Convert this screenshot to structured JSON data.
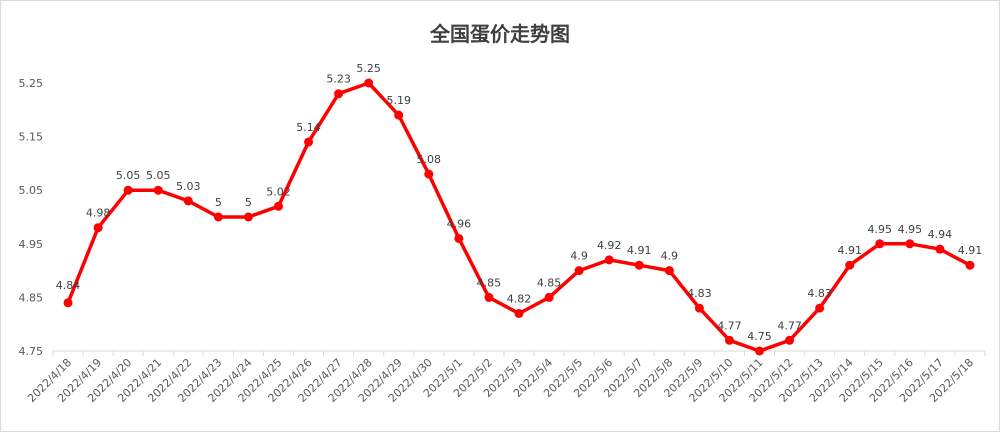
{
  "chart_data": {
    "type": "line",
    "title": "全国蛋价走势图",
    "xlabel": "",
    "ylabel": "",
    "ylim": [
      4.75,
      5.25
    ],
    "y_ticks": [
      "4.75",
      "4.85",
      "4.95",
      "5.05",
      "5.15",
      "5.25"
    ],
    "grid": false,
    "legend": "none",
    "line_color": "#ff0000",
    "categories": [
      "2022/4/18",
      "2022/4/19",
      "2022/4/20",
      "2022/4/21",
      "2022/4/22",
      "2022/4/23",
      "2022/4/24",
      "2022/4/25",
      "2022/4/26",
      "2022/4/27",
      "2022/4/28",
      "2022/4/29",
      "2022/4/30",
      "2022/5/1",
      "2022/5/2",
      "2022/5/3",
      "2022/5/4",
      "2022/5/5",
      "2022/5/6",
      "2022/5/7",
      "2022/5/8",
      "2022/5/9",
      "2022/5/10",
      "2022/5/11",
      "2022/5/12",
      "2022/5/13",
      "2022/5/14",
      "2022/5/15",
      "2022/5/16",
      "2022/5/17",
      "2022/5/18"
    ],
    "values": [
      4.84,
      4.98,
      5.05,
      5.05,
      5.03,
      5,
      5,
      5.02,
      5.14,
      5.23,
      5.25,
      5.19,
      5.08,
      4.96,
      4.85,
      4.82,
      4.85,
      4.9,
      4.92,
      4.91,
      4.9,
      4.83,
      4.77,
      4.75,
      4.77,
      4.83,
      4.91,
      4.95,
      4.95,
      4.94,
      4.91
    ],
    "data_labels": [
      "4.84",
      "4.98",
      "5.05",
      "5.05",
      "5.03",
      "5",
      "5",
      "5.02",
      "5.14",
      "5.23",
      "5.25",
      "5.19",
      "5.08",
      "4.96",
      "4.85",
      "4.82",
      "4.85",
      "4.9",
      "4.92",
      "4.91",
      "4.9",
      "4.83",
      "4.77",
      "4.75",
      "4.77",
      "4.83",
      "4.91",
      "4.95",
      "4.95",
      "4.94",
      "4.91"
    ]
  }
}
